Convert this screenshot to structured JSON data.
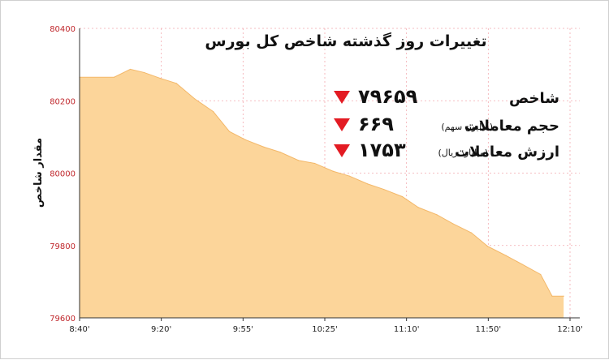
{
  "chart_data": {
    "type": "area",
    "title": "تغییرات روز گذشته شاخص کل بورس",
    "xlabel": "",
    "ylabel": "مقدار شاخص",
    "ylim": [
      79600,
      80400
    ],
    "yticks": [
      "80400",
      "80200",
      "80000",
      "79800",
      "79600"
    ],
    "xticks": [
      "8:40'",
      "9:20'",
      "9:55'",
      "10:25'",
      "11:10'",
      "11:50'",
      "12:10'"
    ],
    "grid": true,
    "series": [
      {
        "points": [
          [
            "8:40",
            80265
          ],
          [
            "8:55",
            80265
          ],
          [
            "9:02",
            80287
          ],
          [
            "9:08",
            80278
          ],
          [
            "9:15",
            80262
          ],
          [
            "9:22",
            80248
          ],
          [
            "9:30",
            80205
          ],
          [
            "9:38",
            80170
          ],
          [
            "9:45",
            80115
          ],
          [
            "9:52",
            80092
          ],
          [
            "10:00",
            80072
          ],
          [
            "10:07",
            80058
          ],
          [
            "10:15",
            80035
          ],
          [
            "10:22",
            80027
          ],
          [
            "10:30",
            80005
          ],
          [
            "10:37",
            79992
          ],
          [
            "10:45",
            79970
          ],
          [
            "10:52",
            79955
          ],
          [
            "11:00",
            79935
          ],
          [
            "11:07",
            79905
          ],
          [
            "11:15",
            79885
          ],
          [
            "11:22",
            79860
          ],
          [
            "11:30",
            79835
          ],
          [
            "11:37",
            79798
          ],
          [
            "11:45",
            79772
          ],
          [
            "11:52",
            79748
          ],
          [
            "12:00",
            79720
          ],
          [
            "12:05",
            79660
          ],
          [
            "12:10",
            79660
          ]
        ]
      }
    ],
    "fill_color": "#fcd59a",
    "tick_color": "#c0282d",
    "grid_color": "#f2a9ae"
  },
  "stats": [
    {
      "label": "شاخص",
      "sub": "",
      "value": "۷۹۶۵۹",
      "trend": "down"
    },
    {
      "label": "حجم معاملات",
      "sub": "(میلیون سهم)",
      "value": "۶۶۹",
      "trend": "down"
    },
    {
      "label": "ارزش معاملات",
      "sub": "(میلیارد ریال)",
      "value": "۱۷۵۳",
      "trend": "down"
    }
  ],
  "down_color": "#e31b23"
}
